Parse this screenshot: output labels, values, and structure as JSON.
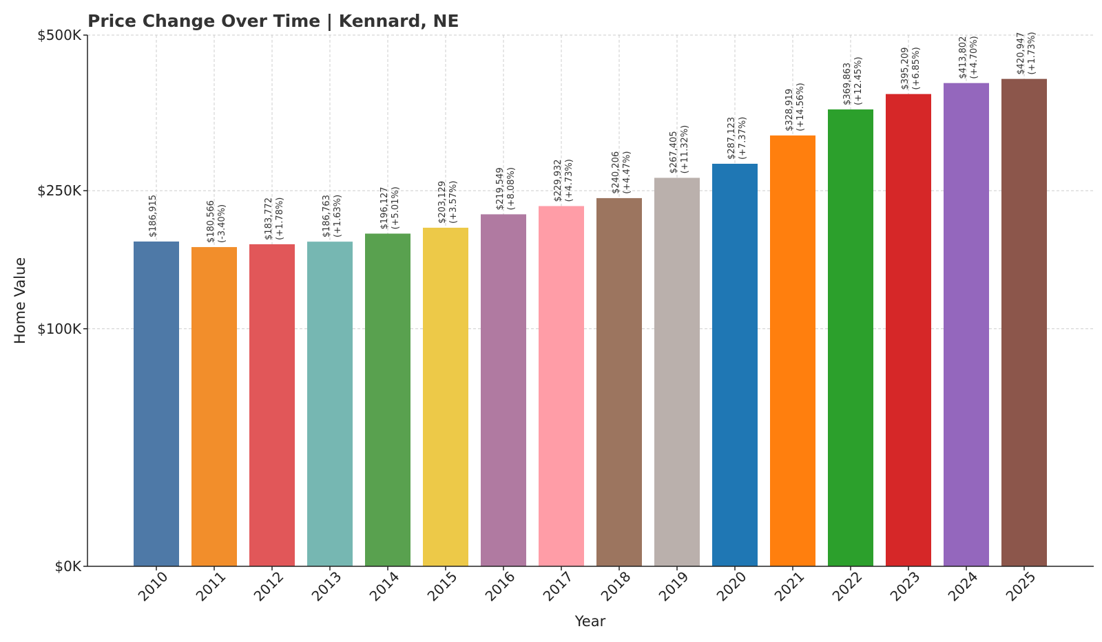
{
  "chart_data": {
    "type": "bar",
    "title": "Price Change Over Time | Kennard, NE",
    "xlabel": "Year",
    "ylabel": "Home Value",
    "y_scale": "sqrt",
    "ylim": [
      0,
      500000
    ],
    "y_ticks": [
      {
        "value": 0,
        "label": "$0K"
      },
      {
        "value": 100000,
        "label": "$100K"
      },
      {
        "value": 250000,
        "label": "$250K"
      },
      {
        "value": 500000,
        "label": "$500K"
      }
    ],
    "grid": true,
    "categories": [
      "2010",
      "2011",
      "2012",
      "2013",
      "2014",
      "2015",
      "2016",
      "2017",
      "2018",
      "2019",
      "2020",
      "2021",
      "2022",
      "2023",
      "2024",
      "2025"
    ],
    "values": [
      186915,
      180566,
      183772,
      186763,
      196127,
      203129,
      219549,
      229932,
      240206,
      267405,
      287123,
      328919,
      369863,
      395209,
      413802,
      420947
    ],
    "value_labels": [
      "$186,915",
      "$180,566",
      "$183,772",
      "$186,763",
      "$196,127",
      "$203,129",
      "$219,549",
      "$229,932",
      "$240,206",
      "$267,405",
      "$287,123",
      "$328,919",
      "$369,863",
      "$395,209",
      "$413,802",
      "$420,947"
    ],
    "change_labels": [
      "",
      "(-3.40%)",
      "(+1.78%)",
      "(+1.63%)",
      "(+5.01%)",
      "(+3.57%)",
      "(+8.08%)",
      "(+4.73%)",
      "(+4.47%)",
      "(+11.32%)",
      "(+7.37%)",
      "(+14.56%)",
      "(+12.45%)",
      "(+6.85%)",
      "(+4.70%)",
      "(+1.73%)"
    ],
    "colors": [
      "#4e79a7",
      "#f28e2b",
      "#e15759",
      "#76b7b2",
      "#59a14f",
      "#edc948",
      "#b07aa1",
      "#ff9da7",
      "#9c755f",
      "#bab0ac",
      "#1f77b4",
      "#ff7f0e",
      "#2ca02c",
      "#d62728",
      "#9467bd",
      "#8c564b"
    ]
  }
}
